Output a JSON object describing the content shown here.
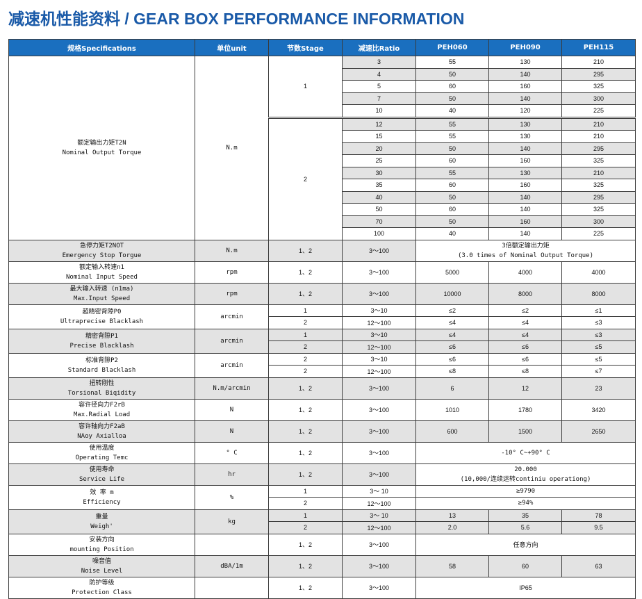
{
  "title": "减速机性能资料 / GEAR BOX PERFORMANCE INFORMATION",
  "headers": {
    "spec": "规格Specifications",
    "unit": "单位unit",
    "stage": "节数Stage",
    "ratio": "减速比Ratio",
    "m1": "PEH060",
    "m2": "PEH090",
    "m3": "PEH115"
  },
  "torque": {
    "name_cn": "额定输出力矩T2N",
    "name_en": "Nominal Output Torque",
    "unit": "N.m",
    "stages": [
      {
        "stage": "1",
        "rows": [
          {
            "ratio": "3",
            "v": [
              "55",
              "130",
              "210"
            ]
          },
          {
            "ratio": "4",
            "v": [
              "50",
              "140",
              "295"
            ]
          },
          {
            "ratio": "5",
            "v": [
              "60",
              "160",
              "325"
            ]
          },
          {
            "ratio": "7",
            "v": [
              "50",
              "140",
              "300"
            ]
          },
          {
            "ratio": "10",
            "v": [
              "40",
              "120",
              "225"
            ]
          }
        ]
      },
      {
        "stage": "2",
        "rows": [
          {
            "ratio": "12",
            "v": [
              "55",
              "130",
              "210"
            ]
          },
          {
            "ratio": "15",
            "v": [
              "55",
              "130",
              "210"
            ]
          },
          {
            "ratio": "20",
            "v": [
              "50",
              "140",
              "295"
            ]
          },
          {
            "ratio": "25",
            "v": [
              "60",
              "160",
              "325"
            ]
          },
          {
            "ratio": "30",
            "v": [
              "55",
              "130",
              "210"
            ]
          },
          {
            "ratio": "35",
            "v": [
              "60",
              "160",
              "325"
            ]
          },
          {
            "ratio": "40",
            "v": [
              "50",
              "140",
              "295"
            ]
          },
          {
            "ratio": "50",
            "v": [
              "60",
              "140",
              "325"
            ]
          },
          {
            "ratio": "70",
            "v": [
              "50",
              "160",
              "300"
            ]
          },
          {
            "ratio": "100",
            "v": [
              "40",
              "140",
              "225"
            ]
          }
        ]
      }
    ]
  },
  "emergency": {
    "cn": "急停力矩T2NOT",
    "en": "Emergency Stop Torgue",
    "unit": "N.m",
    "stage": "1、2",
    "ratio": "3～100",
    "v1": "3倍额定输出力矩",
    "v2": "(3.0 times of Nominal Output Torque)"
  },
  "input_speed": {
    "cn": "额定输入转速n1",
    "en": "Nominal Input Speed",
    "unit": "rpm",
    "stage": "1、2",
    "ratio": "3～100",
    "v": [
      "5000",
      "4000",
      "4000"
    ]
  },
  "max_speed": {
    "cn": "最大输入转速 (n1ma)",
    "en": "Max.Input Speed",
    "unit": "rpm",
    "stage": "1、2",
    "ratio": "3～100",
    "v": [
      "10000",
      "8000",
      "8000"
    ]
  },
  "backlash_p0": {
    "cn": "超精密背隙P0",
    "en": "Ultraprecise Blacklash",
    "unit": "arcmin",
    "rows": [
      {
        "stage": "1",
        "ratio": "3～10",
        "v": [
          "≤2",
          "≤2",
          "≤1"
        ]
      },
      {
        "stage": "2",
        "ratio": "12～100",
        "v": [
          "≤4",
          "≤4",
          "≤3"
        ]
      }
    ]
  },
  "backlash_p1": {
    "cn": "精密背隙P1",
    "en": "Precise Blacklash",
    "unit": "arcmin",
    "rows": [
      {
        "stage": "1",
        "ratio": "3～10",
        "v": [
          "≤4",
          "≤4",
          "≤3"
        ]
      },
      {
        "stage": "2",
        "ratio": "12～100",
        "v": [
          "≤6",
          "≤6",
          "≤5"
        ]
      }
    ]
  },
  "backlash_p2": {
    "cn": "标准背隙P2",
    "en": "Standard Blacklash",
    "unit": "arcmin",
    "rows": [
      {
        "stage": "2",
        "ratio": "3～10",
        "v": [
          "≤6",
          "≤6",
          "≤5"
        ]
      },
      {
        "stage": "2",
        "ratio": "12～100",
        "v": [
          "≤8",
          "≤8",
          "≤7"
        ]
      }
    ]
  },
  "rigidity": {
    "cn": "扭转刚性",
    "en": "Torsional Biqidity",
    "unit": "N.m/arcmin",
    "stage": "1、2",
    "ratio": "3～100",
    "v": [
      "6",
      "12",
      "23"
    ]
  },
  "radial": {
    "cn": "容许径向力F2rB",
    "en": "Max.Radial Load",
    "unit": "N",
    "stage": "1、2",
    "ratio": "3～100",
    "v": [
      "1010",
      "1780",
      "3420"
    ]
  },
  "axial": {
    "cn": "容许轴向力F2aB",
    "en": "NAoy Axialloa",
    "unit": "N",
    "stage": "1、2",
    "ratio": "3～100",
    "v": [
      "600",
      "1500",
      "2650"
    ]
  },
  "temp": {
    "cn": "使用温度",
    "en": "Operating Temc",
    "unit": "° C",
    "stage": "1、2",
    "ratio": "3～100",
    "value": "-10° C~+90° C"
  },
  "life": {
    "cn": "使用寿命",
    "en": "Service Life",
    "unit": "hr",
    "stage": "1、2",
    "ratio": "3～100",
    "v1": "20.000",
    "v2": "(10,000/连续运转continiu operationg)"
  },
  "efficiency": {
    "cn": "效 率 m",
    "en": "Efficiency",
    "unit": "%",
    "rows": [
      {
        "stage": "1",
        "ratio": "3～ 10",
        "value": "≥9790"
      },
      {
        "stage": "2",
        "ratio": "12～100",
        "value": "≥94%"
      }
    ]
  },
  "weight": {
    "cn": "重量",
    "en": "Weigh'",
    "unit": "kg",
    "rows": [
      {
        "stage": "1",
        "ratio": "3～ 10",
        "v": [
          "13",
          "35",
          "78"
        ]
      },
      {
        "stage": "2",
        "ratio": "12～100",
        "v": [
          "2.0",
          "5.6",
          "9.5"
        ]
      }
    ]
  },
  "mounting": {
    "cn": "安装方向",
    "en": "mounting Position",
    "unit": "",
    "stage": "1、2",
    "ratio": "3～100",
    "value": "任意方向"
  },
  "noise": {
    "cn": "噪音值",
    "en": "Noise Level",
    "unit": "dBA/1m",
    "stage": "1、2",
    "ratio": "3～100",
    "v": [
      "58",
      "60",
      "63"
    ]
  },
  "protection": {
    "cn": "防护等级",
    "en": "Protection Class",
    "unit": "",
    "stage": "1、2",
    "ratio": "3～100",
    "value": "IP65"
  }
}
